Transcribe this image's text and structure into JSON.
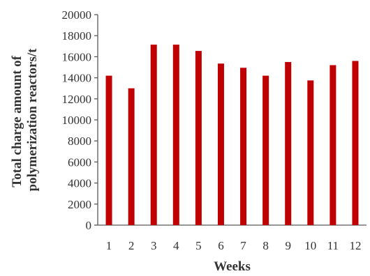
{
  "chart_data": {
    "type": "bar",
    "title": "",
    "xlabel": "Weeks",
    "ylabel_lines": [
      "Total charge amount of",
      "polymerization reactors/t"
    ],
    "categories": [
      "1",
      "2",
      "3",
      "4",
      "5",
      "6",
      "7",
      "8",
      "9",
      "10",
      "11",
      "12"
    ],
    "values": [
      14200,
      13000,
      17150,
      17150,
      16550,
      15350,
      14950,
      14200,
      15500,
      13750,
      15200,
      15600
    ],
    "ylim": [
      0,
      20000
    ],
    "yticks": [
      "0",
      "2000",
      "4000",
      "6000",
      "8000",
      "10000",
      "12000",
      "14000",
      "16000",
      "18000",
      "20000"
    ],
    "bar_color": "#c00000",
    "grid": false,
    "legend": "none"
  }
}
